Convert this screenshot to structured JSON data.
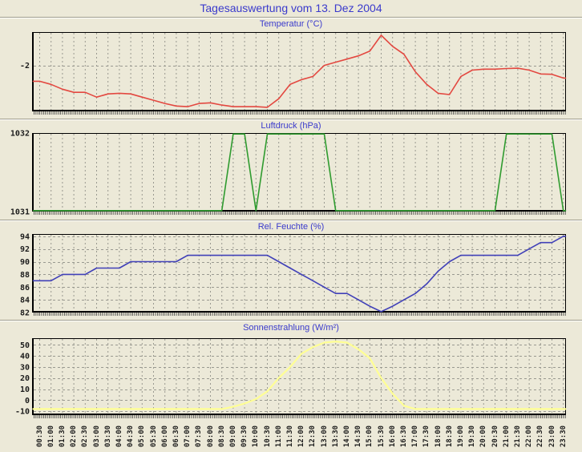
{
  "header": {
    "title": "Tagesauswertung vom 13. Dez 2004"
  },
  "colors": {
    "background": "#ece9d8",
    "title_text": "#3a3acc",
    "grid": "#999990",
    "axis": "#000000",
    "tick_text": "#1c1c1c",
    "temperatur_line": "#e34840",
    "luftdruck_line": "#2f9b2f",
    "feuchte_line": "#4040b8",
    "sonnenstrahlung_line": "#ffff94"
  },
  "chart_data": {
    "type": "line",
    "layout": "4 stacked panels sharing one x axis, vertical dashed gridlines every 30 min, rotated time labels at bottom",
    "categories": [
      "00:30",
      "01:00",
      "01:30",
      "02:00",
      "02:30",
      "03:00",
      "03:30",
      "04:00",
      "04:30",
      "05:00",
      "05:30",
      "06:00",
      "06:30",
      "07:00",
      "07:30",
      "08:00",
      "08:30",
      "09:00",
      "09:30",
      "10:00",
      "10:30",
      "11:00",
      "11:30",
      "12:00",
      "12:30",
      "13:00",
      "13:30",
      "14:00",
      "14:30",
      "15:00",
      "15:30",
      "16:00",
      "16:30",
      "17:00",
      "17:30",
      "18:00",
      "18:30",
      "19:00",
      "19:30",
      "20:00",
      "20:30",
      "21:00",
      "21:30",
      "22:00",
      "22:30",
      "23:00",
      "23:30"
    ],
    "panels": [
      {
        "id": "temperatur",
        "title": "Temperatur (°C)",
        "color": "#e34840",
        "ylim": [
          -3.45,
          -0.95
        ],
        "yticks": [
          -2
        ],
        "grid_yticks": [
          -2
        ],
        "values": [
          -2.5,
          -2.6,
          -2.75,
          -2.85,
          -2.85,
          -3.0,
          -2.9,
          -2.88,
          -2.9,
          -3.0,
          -3.1,
          -3.2,
          -3.28,
          -3.3,
          -3.2,
          -3.18,
          -3.25,
          -3.3,
          -3.3,
          -3.3,
          -3.32,
          -3.05,
          -2.6,
          -2.45,
          -2.35,
          -2.0,
          -1.9,
          -1.8,
          -1.7,
          -1.55,
          -1.05,
          -1.4,
          -1.65,
          -2.2,
          -2.6,
          -2.88,
          -2.92,
          -2.35,
          -2.15,
          -2.12,
          -2.12,
          -2.1,
          -2.09,
          -2.15,
          -2.27,
          -2.28,
          -2.4
        ]
      },
      {
        "id": "luftdruck",
        "title": "Luftdruck (hPa)",
        "color": "#2f9b2f",
        "ylim": [
          1031,
          1032
        ],
        "yticks": [
          1032,
          1031
        ],
        "grid_yticks": [],
        "values": [
          1031,
          1031,
          1031,
          1031,
          1031,
          1031,
          1031,
          1031,
          1031,
          1031,
          1031,
          1031,
          1031,
          1031,
          1031,
          1031,
          1031,
          1032,
          1032,
          1031,
          1032,
          1032,
          1032,
          1032,
          1032,
          1032,
          1031,
          1031,
          1031,
          1031,
          1031,
          1031,
          1031,
          1031,
          1031,
          1031,
          1031,
          1031,
          1031,
          1031,
          1031,
          1032,
          1032,
          1032,
          1032,
          1032,
          1031
        ]
      },
      {
        "id": "rel-feuchte",
        "title": "Rel. Feuchte (%)",
        "color": "#4040b8",
        "ylim": [
          82,
          94.35
        ],
        "yticks": [
          94,
          92,
          90,
          88,
          86,
          84,
          82
        ],
        "grid_yticks": [
          94,
          92,
          90,
          88,
          86,
          84
        ],
        "values": [
          87,
          87,
          88,
          88,
          88,
          89,
          89,
          89,
          90,
          90,
          90,
          90,
          90,
          91,
          91,
          91,
          91,
          91,
          91,
          91,
          91,
          90,
          89,
          88,
          87,
          86,
          85,
          85,
          84,
          83,
          82,
          83,
          84,
          85,
          86.5,
          88.5,
          90,
          91,
          91,
          91,
          91,
          91,
          91,
          92,
          93,
          93,
          94
        ]
      },
      {
        "id": "sonnenstrahlung",
        "title": "Sonnenstrahlung (W/m²)",
        "color": "#ffff94",
        "ylim": [
          -13.5,
          56
        ],
        "yticks": [
          50,
          40,
          30,
          20,
          10,
          0,
          -10
        ],
        "grid_yticks": [
          50,
          40,
          30,
          20,
          10,
          0,
          -10
        ],
        "values": [
          -8,
          -8,
          -8,
          -8,
          -8,
          -8,
          -8,
          -8,
          -8,
          -8,
          -8,
          -8,
          -8,
          -8,
          -8,
          -8,
          -8,
          -6,
          -3,
          1,
          8,
          20,
          30,
          42,
          48,
          52,
          53,
          52,
          46,
          38,
          20,
          6,
          -5,
          -8,
          -8,
          -8,
          -8,
          -8,
          -8,
          -8,
          -8,
          -8,
          -8,
          -8,
          -8,
          -8,
          -8
        ]
      }
    ]
  }
}
